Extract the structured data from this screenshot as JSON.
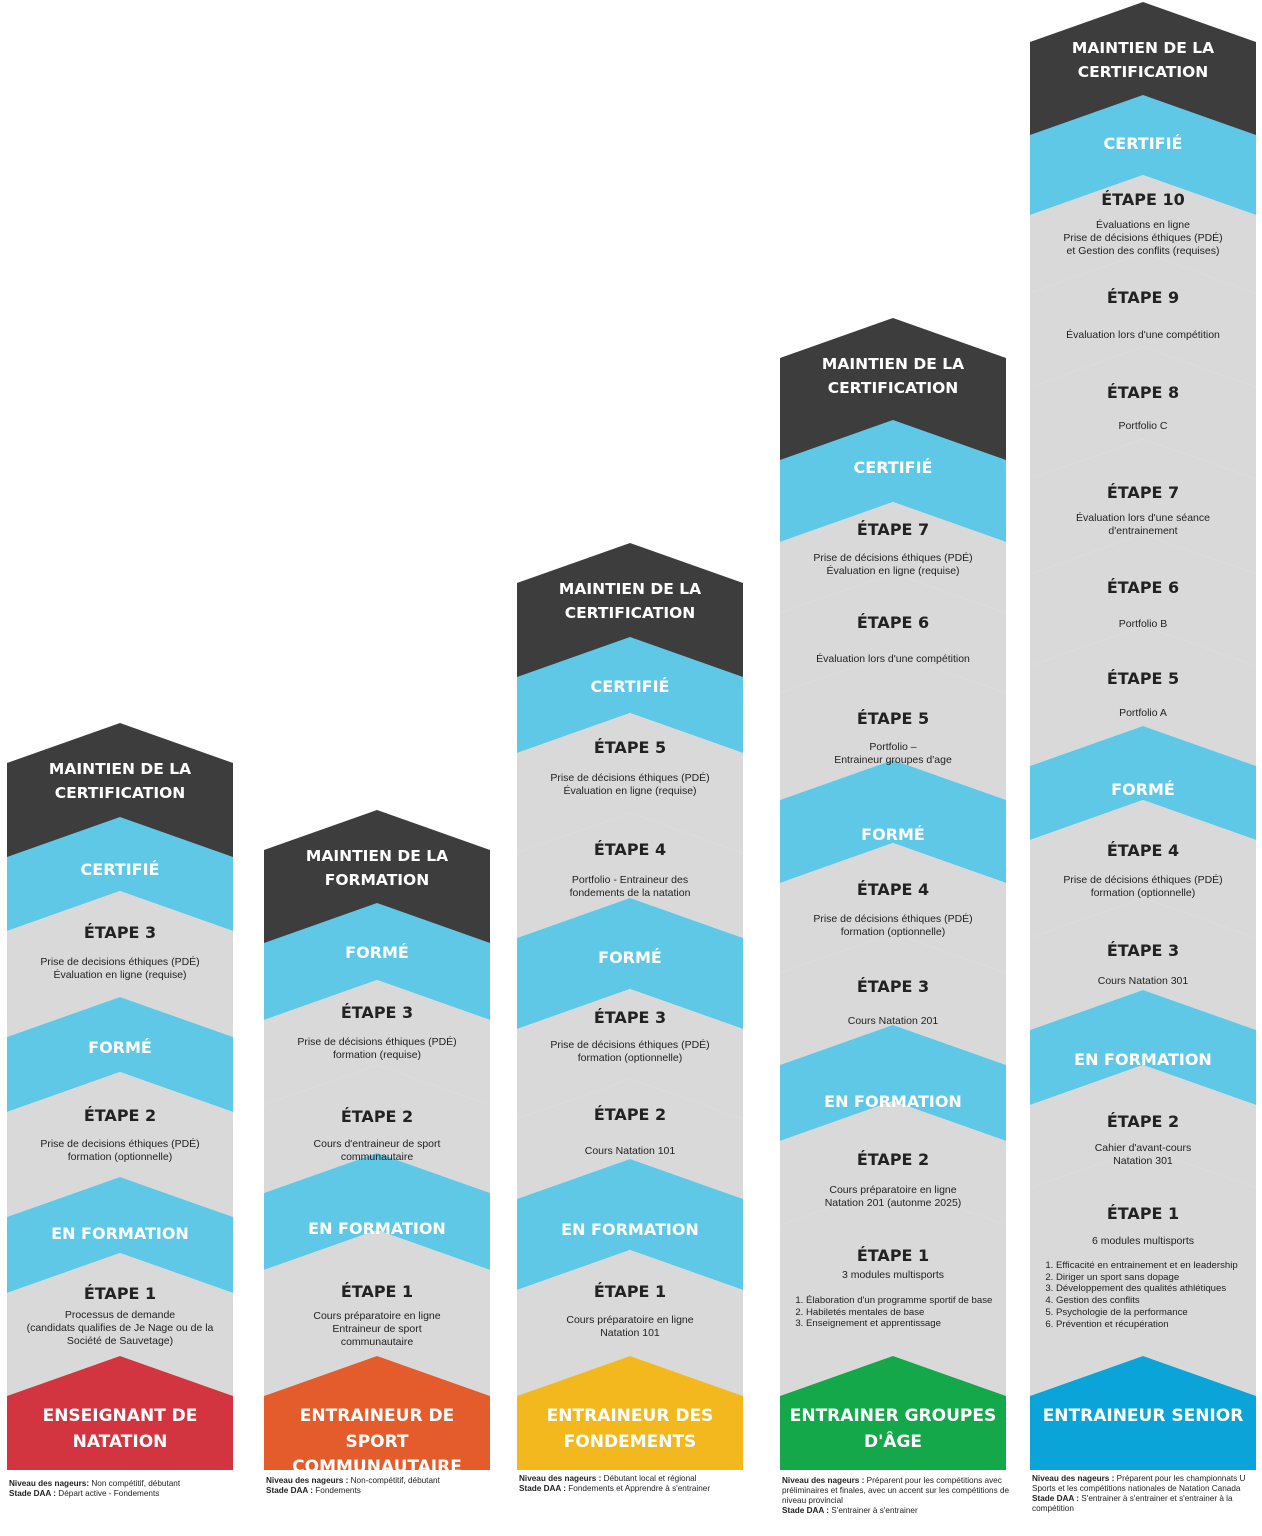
{
  "colors": {
    "dark": "#3d3d3d",
    "blue": "#5ec8e6",
    "gray": "#d9d9d9",
    "red": "#d23440",
    "orange": "#e45c2c",
    "yellow": "#f2b81e",
    "green": "#14a84b",
    "senior_blue": "#0aa4d8"
  },
  "columns": [
    {
      "head": "MAINTIEN DE LA CERTIFICATION",
      "base": "ENSEIGNANT DE NATATION",
      "base_color": "red",
      "footer": {
        "niveau_label": "Niveau des nageurs:",
        "niveau": "Non compétitif, débutant",
        "stade_label": "Stade DAA :",
        "stade": "Départ active - Fondements"
      },
      "sections": [
        {
          "kind": "tier",
          "label": "CERTIFIÉ"
        },
        {
          "kind": "step",
          "title": "ÉTAPE 3",
          "desc": "Prise de decisions éthiques (PDÉ)\nÉvaluation en ligne (requise)"
        },
        {
          "kind": "tier",
          "label": "FORMÉ"
        },
        {
          "kind": "step",
          "title": "ÉTAPE 2",
          "desc": "Prise de decisions éthiques (PDÉ)\nformation (optionnelle)"
        },
        {
          "kind": "tier",
          "label": "EN FORMATION"
        },
        {
          "kind": "step",
          "title": "ÉTAPE 1",
          "desc": "Processus de demande\n(candidats qualifies de Je Nage ou de la\nSociété de Sauvetage)"
        }
      ]
    },
    {
      "head": "MAINTIEN DE LA FORMATION",
      "base": "ENTRAINEUR DE SPORT COMMUNAUTAIRE",
      "base_color": "orange",
      "footer": {
        "niveau_label": "Niveau des nageurs :",
        "niveau": "Non-compétitif, débutant",
        "stade_label": "Stade DAA :",
        "stade": "Fondements"
      },
      "sections": [
        {
          "kind": "tier",
          "label": "FORMÉ"
        },
        {
          "kind": "step",
          "title": "ÉTAPE 3",
          "desc": "Prise de décisions éthiques (PDÉ)\nformation (requise)"
        },
        {
          "kind": "step",
          "title": "ÉTAPE 2",
          "desc": "Cours d'entraineur de sport\ncommunautaire"
        },
        {
          "kind": "tier",
          "label": "EN FORMATION"
        },
        {
          "kind": "step",
          "title": "ÉTAPE 1",
          "desc": "Cours préparatoire en ligne\nEntraineur de sport\ncommunautaire"
        }
      ]
    },
    {
      "head": "MAINTIEN DE LA CERTIFICATION",
      "base": "ENTRAINEUR DES FONDEMENTS",
      "base_color": "yellow",
      "footer": {
        "niveau_label": "Niveau des nageurs :",
        "niveau": "Débutant local et régional",
        "stade_label": "Stade DAA :",
        "stade": "Fondements et Apprendre à s'entrainer"
      },
      "sections": [
        {
          "kind": "tier",
          "label": "CERTIFIÉ"
        },
        {
          "kind": "step",
          "title": "ÉTAPE 5",
          "desc": "Prise de décisions éthiques (PDÉ)\nÉvaluation en ligne (requise)"
        },
        {
          "kind": "step",
          "title": "ÉTAPE 4",
          "desc": "Portfolio - Entraineur des\nfondements de la natation"
        },
        {
          "kind": "tier",
          "label": "FORMÉ"
        },
        {
          "kind": "step",
          "title": "ÉTAPE 3",
          "desc": "Prise de décisions éthiques (PDÉ)\nformation (optionnelle)"
        },
        {
          "kind": "step",
          "title": "ÉTAPE 2",
          "desc": "Cours Natation 101"
        },
        {
          "kind": "tier",
          "label": "EN FORMATION"
        },
        {
          "kind": "step",
          "title": "ÉTAPE 1",
          "desc": "Cours préparatoire en ligne\nNatation 101"
        }
      ]
    },
    {
      "head": "MAINTIEN DE LA CERTIFICATION",
      "base": "ENTRAINER GROUPES D'ÂGE",
      "base_color": "green",
      "footer": {
        "niveau_label": "Niveau des nageurs :",
        "niveau": "Préparent pour les compétitions avec préliminaires et finales, avec un accent sur les compétitions de niveau provincial",
        "stade_label": "Stade DAA :",
        "stade": "S'entrainer à s'entrainer"
      },
      "sections": [
        {
          "kind": "tier",
          "label": "CERTIFIÉ"
        },
        {
          "kind": "step",
          "title": "ÉTAPE 7",
          "desc": "Prise de décisions éthiques (PDÉ)\nÉvaluation en ligne (requise)"
        },
        {
          "kind": "step",
          "title": "ÉTAPE 6",
          "desc": "Évaluation lors d'une compétition"
        },
        {
          "kind": "step",
          "title": "ÉTAPE 5",
          "desc": "Portfolio –\nEntraineur groupes d'age"
        },
        {
          "kind": "tier",
          "label": "FORMÉ"
        },
        {
          "kind": "step",
          "title": "ÉTAPE 4",
          "desc": "Prise de décisions éthiques (PDÉ)\nformation (optionnelle)"
        },
        {
          "kind": "step",
          "title": "ÉTAPE 3",
          "desc": "Cours Natation 201"
        },
        {
          "kind": "tier",
          "label": "EN FORMATION"
        },
        {
          "kind": "step",
          "title": "ÉTAPE 2",
          "desc": "Cours préparatoire en ligne\nNatation 201 (autonme 2025)"
        },
        {
          "kind": "step",
          "title": "ÉTAPE 1",
          "desc": "3 modules multisports",
          "list": [
            "Élaboration d'un programme sportif de base",
            "Habiletés mentales de base",
            "Enseignement et apprentissage"
          ]
        }
      ]
    },
    {
      "head": "MAINTIEN DE LA CERTIFICATION",
      "base": "ENTRAINEUR SENIOR",
      "base_color": "senior_blue",
      "footer": {
        "niveau_label": "Niveau des nageurs :",
        "niveau": "Préparent pour les championnats U Sports et les compétitions nationales de Natation Canada",
        "stade_label": "Stade DAA :",
        "stade": "S'entrainer à s'entrainer et s'entrainer à la compétition"
      },
      "sections": [
        {
          "kind": "tier",
          "label": "CERTIFIÉ"
        },
        {
          "kind": "step",
          "title": "ÉTAPE 10",
          "desc": "Évaluations en ligne\nPrise de décisions éthiques (PDÉ)\net Gestion des conflits (requises)"
        },
        {
          "kind": "step",
          "title": "ÉTAPE 9",
          "desc": "Évaluation lors d'une compétition"
        },
        {
          "kind": "step",
          "title": "ÉTAPE 8",
          "desc": "Portfolio C"
        },
        {
          "kind": "step",
          "title": "ÉTAPE 7",
          "desc": "Évaluation lors d'une séance\nd'entrainement"
        },
        {
          "kind": "step",
          "title": "ÉTAPE 6",
          "desc": "Portfolio B"
        },
        {
          "kind": "step",
          "title": "ÉTAPE 5",
          "desc": "Portfolio A"
        },
        {
          "kind": "tier",
          "label": "FORMÉ"
        },
        {
          "kind": "step",
          "title": "ÉTAPE 4",
          "desc": "Prise de décisions éthiques (PDÉ)\nformation (optionnelle)"
        },
        {
          "kind": "step",
          "title": "ÉTAPE 3",
          "desc": "Cours Natation 301"
        },
        {
          "kind": "tier",
          "label": "EN FORMATION"
        },
        {
          "kind": "step",
          "title": "ÉTAPE 2",
          "desc": "Cahier d'avant-cours\nNatation 301"
        },
        {
          "kind": "step",
          "title": "ÉTAPE 1",
          "desc": "6 modules multisports",
          "list": [
            "Efficacité en entrainement et en leadership",
            "Diriger un sport sans dopage",
            "Développement des qualités athlétiques",
            "Gestion des conflits",
            "Psychologie de la performance",
            "Prévention et récupération"
          ]
        }
      ]
    }
  ]
}
